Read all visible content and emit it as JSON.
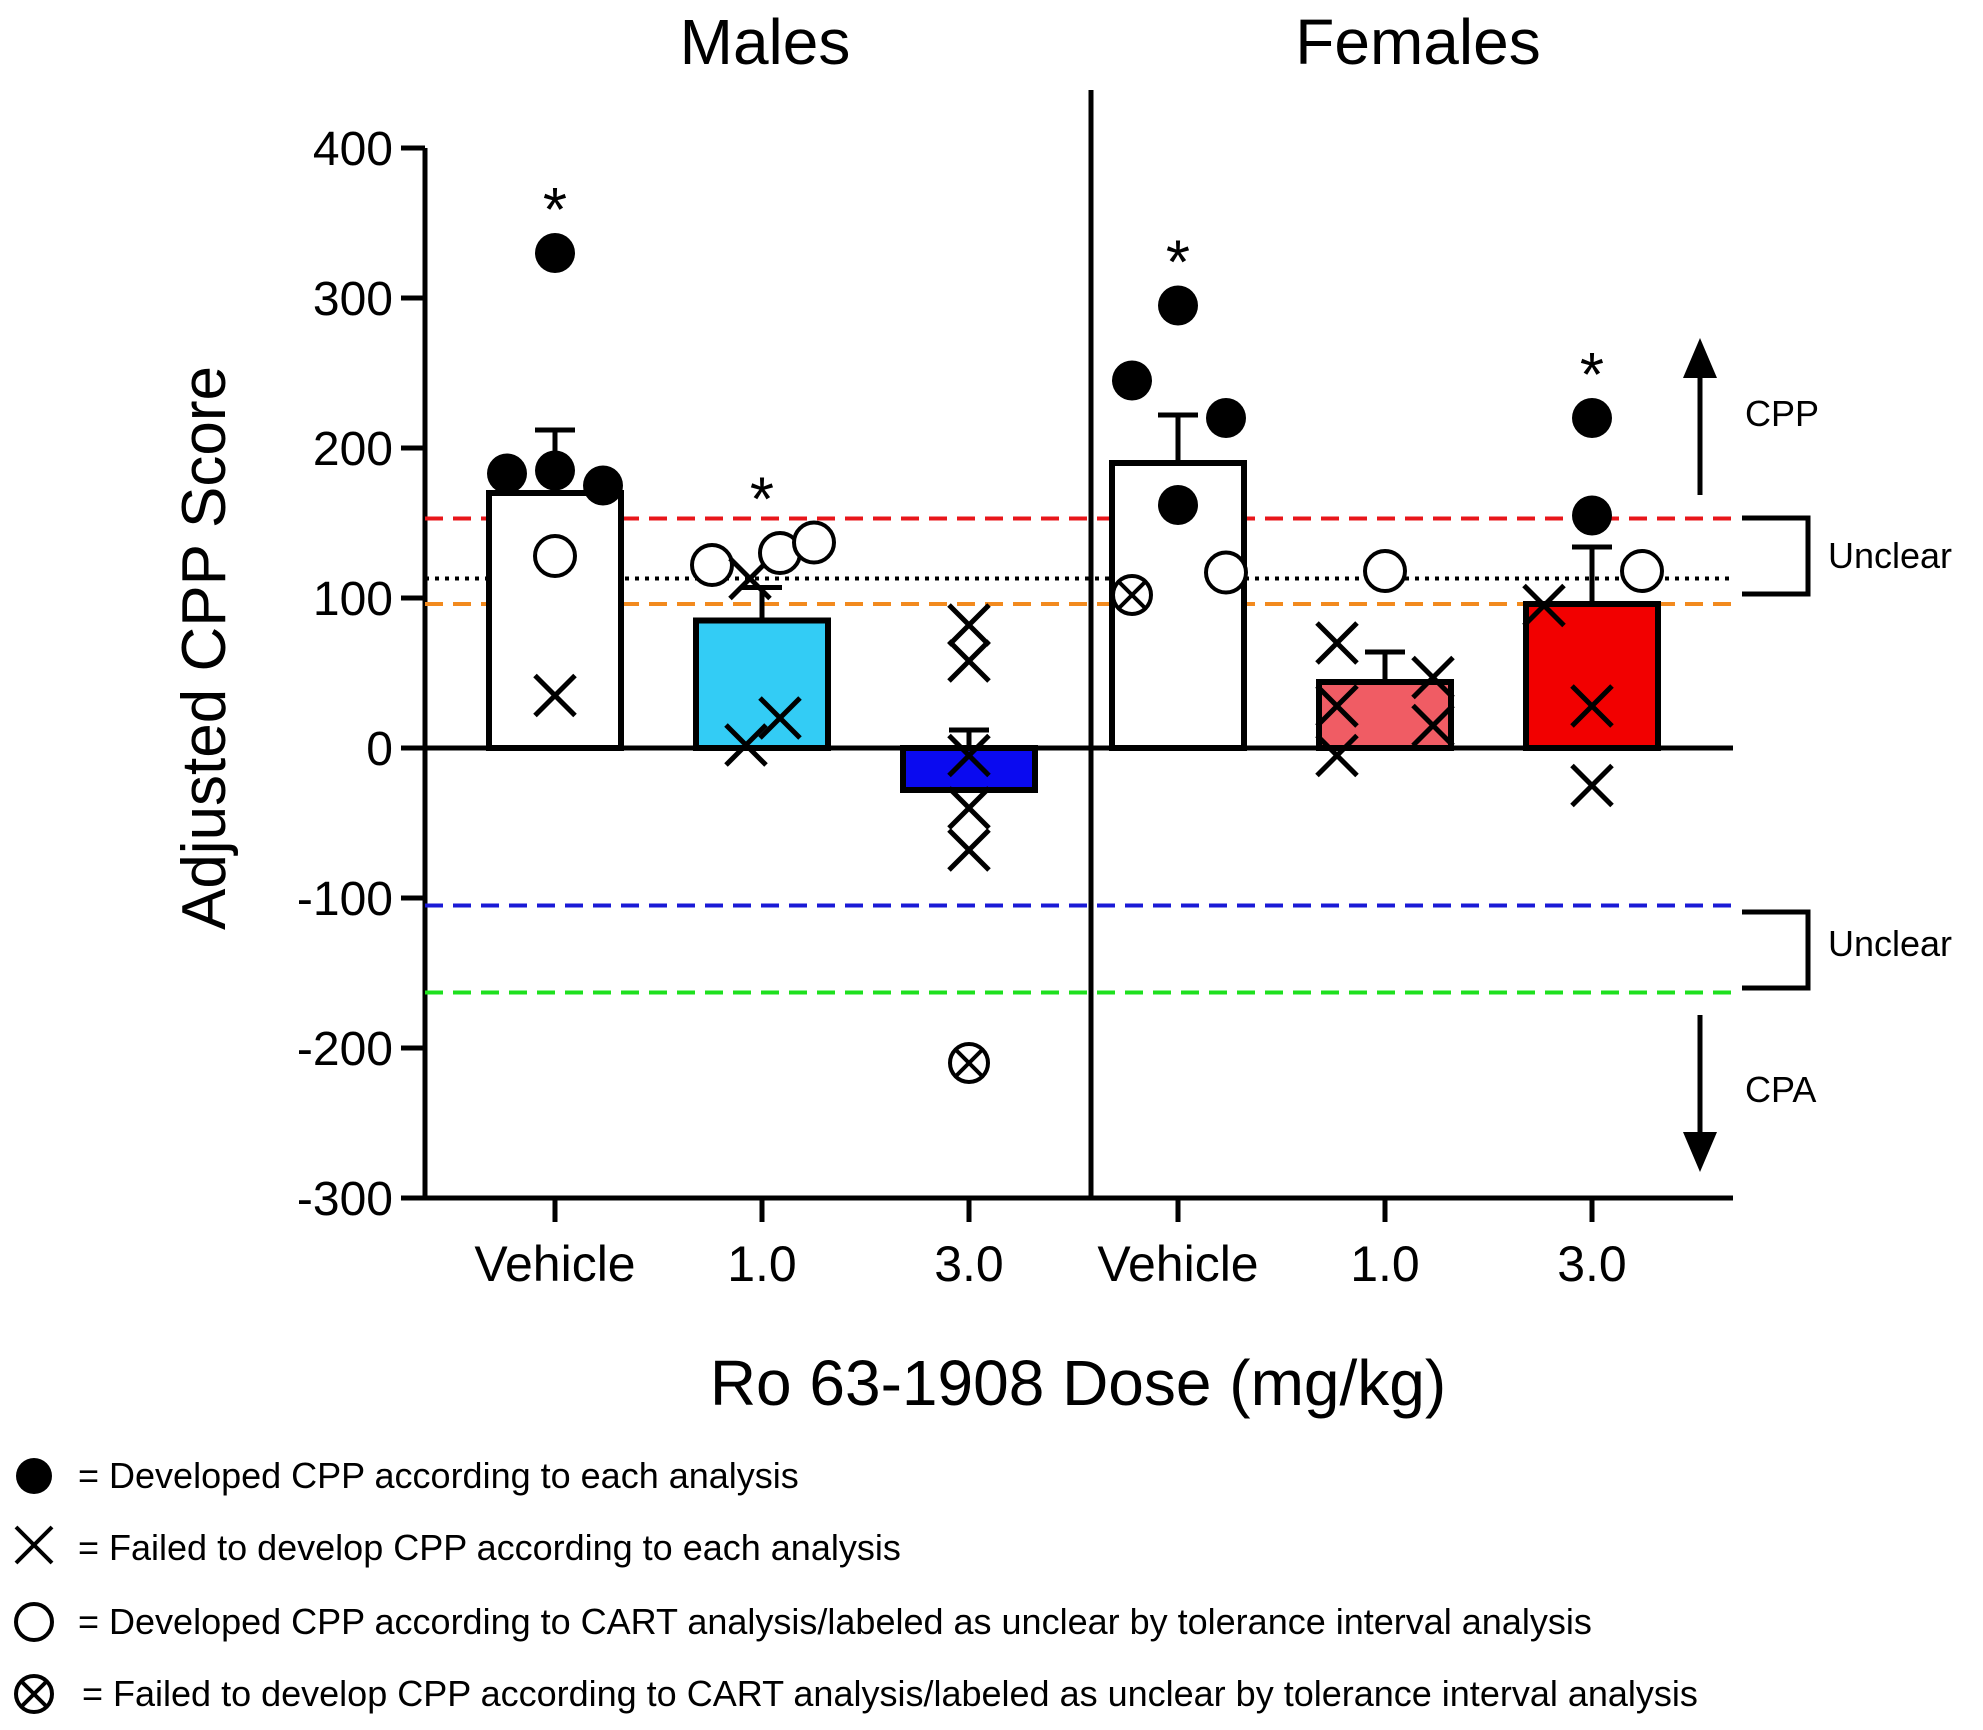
{
  "chart_data": {
    "type": "bar",
    "panels": [
      {
        "title": "Males",
        "groups": [
          "Vehicle",
          "1.0",
          "3.0"
        ]
      },
      {
        "title": "Females",
        "groups": [
          "Vehicle",
          "1.0",
          "3.0"
        ]
      }
    ],
    "xlabel": "Ro 63-1908 Dose (mg/kg)",
    "ylabel": "Adjusted CPP Score",
    "ylim": [
      -300,
      400
    ],
    "yticks": [
      "400",
      "300",
      "200",
      "100",
      "0",
      "-100",
      "-200",
      "-300"
    ],
    "ytick_values": [
      400,
      300,
      200,
      100,
      0,
      -100,
      -200,
      -300
    ],
    "bars": [
      {
        "panel": "Males",
        "group": "Vehicle",
        "mean": 170,
        "sem": 42,
        "color": "#ffffff",
        "significant": true
      },
      {
        "panel": "Males",
        "group": "1.0",
        "mean": 85,
        "sem": 22,
        "color": "#33ccf5",
        "significant": true
      },
      {
        "panel": "Males",
        "group": "3.0",
        "mean": -28,
        "sem": 40,
        "color": "#0a0af0",
        "significant": false
      },
      {
        "panel": "Females",
        "group": "Vehicle",
        "mean": 190,
        "sem": 32,
        "color": "#ffffff",
        "significant": true
      },
      {
        "panel": "Females",
        "group": "1.0",
        "mean": 44,
        "sem": 20,
        "color": "#f05c64",
        "significant": false
      },
      {
        "panel": "Females",
        "group": "3.0",
        "mean": 96,
        "sem": 38,
        "color": "#f20000",
        "significant": true
      }
    ],
    "points": [
      {
        "bar": 0,
        "dx": 0,
        "value": 330,
        "kind": "filled"
      },
      {
        "bar": 0,
        "dx": -48,
        "value": 183,
        "kind": "filled"
      },
      {
        "bar": 0,
        "dx": 0,
        "value": 185,
        "kind": "filled"
      },
      {
        "bar": 0,
        "dx": 48,
        "value": 175,
        "kind": "filled"
      },
      {
        "bar": 0,
        "dx": 0,
        "value": 128,
        "kind": "open"
      },
      {
        "bar": 0,
        "dx": 0,
        "value": 35,
        "kind": "x"
      },
      {
        "bar": 1,
        "dx": -50,
        "value": 122,
        "kind": "open"
      },
      {
        "bar": 1,
        "dx": -12,
        "value": 113,
        "kind": "x"
      },
      {
        "bar": 1,
        "dx": 18,
        "value": 130,
        "kind": "open"
      },
      {
        "bar": 1,
        "dx": 52,
        "value": 137,
        "kind": "open"
      },
      {
        "bar": 1,
        "dx": -16,
        "value": 2,
        "kind": "x"
      },
      {
        "bar": 1,
        "dx": 18,
        "value": 20,
        "kind": "x"
      },
      {
        "bar": 2,
        "dx": 0,
        "value": 82,
        "kind": "x"
      },
      {
        "bar": 2,
        "dx": 0,
        "value": 58,
        "kind": "x"
      },
      {
        "bar": 2,
        "dx": 0,
        "value": -5,
        "kind": "x"
      },
      {
        "bar": 2,
        "dx": 0,
        "value": -40,
        "kind": "x"
      },
      {
        "bar": 2,
        "dx": 0,
        "value": -68,
        "kind": "x"
      },
      {
        "bar": 2,
        "dx": 0,
        "value": -210,
        "kind": "crossed"
      },
      {
        "bar": 3,
        "dx": 0,
        "value": 295,
        "kind": "filled"
      },
      {
        "bar": 3,
        "dx": -46,
        "value": 245,
        "kind": "filled"
      },
      {
        "bar": 3,
        "dx": 48,
        "value": 220,
        "kind": "filled"
      },
      {
        "bar": 3,
        "dx": 0,
        "value": 162,
        "kind": "filled"
      },
      {
        "bar": 3,
        "dx": 48,
        "value": 117,
        "kind": "open"
      },
      {
        "bar": 3,
        "dx": -46,
        "value": 102,
        "kind": "crossed"
      },
      {
        "bar": 4,
        "dx": 0,
        "value": 118,
        "kind": "open"
      },
      {
        "bar": 4,
        "dx": -48,
        "value": 70,
        "kind": "x"
      },
      {
        "bar": 4,
        "dx": 48,
        "value": 47,
        "kind": "x"
      },
      {
        "bar": 4,
        "dx": -48,
        "value": 28,
        "kind": "x"
      },
      {
        "bar": 4,
        "dx": 48,
        "value": 15,
        "kind": "x"
      },
      {
        "bar": 4,
        "dx": -48,
        "value": -5,
        "kind": "x"
      },
      {
        "bar": 5,
        "dx": 0,
        "value": 220,
        "kind": "filled"
      },
      {
        "bar": 5,
        "dx": 0,
        "value": 155,
        "kind": "filled"
      },
      {
        "bar": 5,
        "dx": 50,
        "value": 118,
        "kind": "open"
      },
      {
        "bar": 5,
        "dx": -48,
        "value": 95,
        "kind": "x"
      },
      {
        "bar": 5,
        "dx": 0,
        "value": 28,
        "kind": "x"
      },
      {
        "bar": 5,
        "dx": 0,
        "value": -25,
        "kind": "x"
      }
    ],
    "reference_lines": [
      {
        "value": 153,
        "color": "#e8161a",
        "style": "dashed"
      },
      {
        "value": 113,
        "color": "#000000",
        "style": "dotted"
      },
      {
        "value": 96,
        "color": "#f28a1e",
        "style": "dashed"
      },
      {
        "value": -105,
        "color": "#1a1ad6",
        "style": "dashed"
      },
      {
        "value": -163,
        "color": "#1ee01e",
        "style": "dashed"
      }
    ],
    "significance_marker": "*",
    "annotations": {
      "cpp": "CPP",
      "unclear_upper": "Unclear",
      "unclear_lower": "Unclear",
      "cpa": "CPA"
    },
    "legend": [
      {
        "marker": "filled",
        "text": "= Developed CPP according to each analysis"
      },
      {
        "marker": "x",
        "text": "= Failed to develop CPP according to each analysis"
      },
      {
        "marker": "open",
        "text": "= Developed CPP according to CART analysis/labeled as unclear by tolerance interval analysis"
      },
      {
        "marker": "crossed",
        "text": "= Failed to develop CPP according to CART analysis/labeled as unclear by tolerance interval analysis"
      }
    ]
  }
}
